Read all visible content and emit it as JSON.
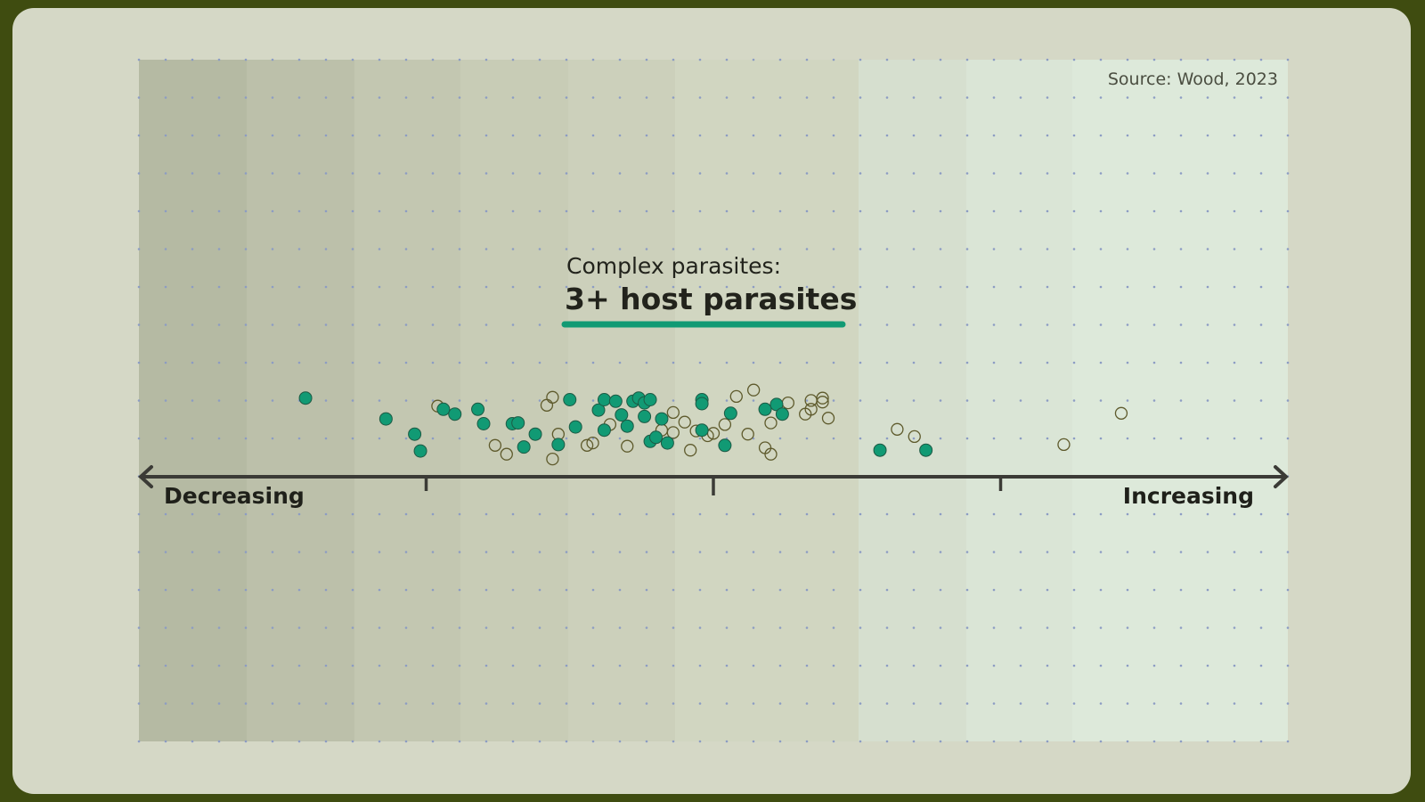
{
  "chart_data": {
    "type": "scatter",
    "title": "Complex parasites:",
    "subtitle": "3+ host parasites",
    "source": "Source: Wood, 2023",
    "xlabel_left": "Decreasing",
    "xlabel_right": "Increasing",
    "xlim": [
      -1,
      1
    ],
    "ylim": [
      0,
      1
    ],
    "x_ticks": [
      -0.5,
      0,
      0.5
    ],
    "grid": "dotted",
    "colors": {
      "filled": "#119a74",
      "open_stroke": "#5e5a2c",
      "underline": "#119a74",
      "axis": "#3b3b36"
    },
    "series": [
      {
        "style": "filled",
        "points": [
          [
            -0.71,
            0.87
          ],
          [
            -0.57,
            0.61
          ],
          [
            -0.52,
            0.42
          ],
          [
            -0.51,
            0.21
          ],
          [
            -0.47,
            0.73
          ],
          [
            -0.45,
            0.67
          ],
          [
            -0.41,
            0.73
          ],
          [
            -0.4,
            0.55
          ],
          [
            -0.35,
            0.55
          ],
          [
            -0.34,
            0.56
          ],
          [
            -0.31,
            0.42
          ],
          [
            -0.33,
            0.26
          ],
          [
            -0.27,
            0.29
          ],
          [
            -0.25,
            0.85
          ],
          [
            -0.2,
            0.72
          ],
          [
            -0.24,
            0.51
          ],
          [
            -0.19,
            0.85
          ],
          [
            -0.17,
            0.83
          ],
          [
            -0.16,
            0.66
          ],
          [
            -0.15,
            0.52
          ],
          [
            -0.19,
            0.47
          ],
          [
            -0.14,
            0.83
          ],
          [
            -0.13,
            0.87
          ],
          [
            -0.12,
            0.81
          ],
          [
            -0.11,
            0.85
          ],
          [
            -0.12,
            0.64
          ],
          [
            -0.09,
            0.61
          ],
          [
            -0.11,
            0.33
          ],
          [
            -0.1,
            0.38
          ],
          [
            -0.08,
            0.31
          ],
          [
            -0.02,
            0.85
          ],
          [
            -0.02,
            0.8
          ],
          [
            -0.02,
            0.47
          ],
          [
            0.03,
            0.68
          ],
          [
            0.02,
            0.28
          ],
          [
            0.09,
            0.73
          ],
          [
            0.11,
            0.79
          ],
          [
            0.12,
            0.67
          ],
          [
            0.29,
            0.22
          ],
          [
            0.37,
            0.22
          ]
        ]
      },
      {
        "style": "open",
        "points": [
          [
            -0.48,
            0.77
          ],
          [
            -0.28,
            0.88
          ],
          [
            -0.29,
            0.78
          ],
          [
            -0.27,
            0.42
          ],
          [
            -0.38,
            0.28
          ],
          [
            -0.36,
            0.17
          ],
          [
            -0.28,
            0.11
          ],
          [
            -0.07,
            0.69
          ],
          [
            -0.05,
            0.57
          ],
          [
            -0.18,
            0.54
          ],
          [
            -0.09,
            0.47
          ],
          [
            -0.07,
            0.44
          ],
          [
            -0.15,
            0.27
          ],
          [
            -0.22,
            0.28
          ],
          [
            -0.21,
            0.31
          ],
          [
            -0.04,
            0.22
          ],
          [
            -0.03,
            0.46
          ],
          [
            -0.01,
            0.4
          ],
          [
            0.0,
            0.43
          ],
          [
            0.02,
            0.54
          ],
          [
            0.04,
            0.89
          ],
          [
            0.07,
            0.97
          ],
          [
            0.13,
            0.81
          ],
          [
            0.16,
            0.67
          ],
          [
            0.17,
            0.73
          ],
          [
            0.17,
            0.84
          ],
          [
            0.19,
            0.87
          ],
          [
            0.19,
            0.82
          ],
          [
            0.2,
            0.62
          ],
          [
            0.1,
            0.56
          ],
          [
            0.09,
            0.25
          ],
          [
            0.1,
            0.17
          ],
          [
            0.06,
            0.42
          ],
          [
            0.32,
            0.48
          ],
          [
            0.35,
            0.39
          ],
          [
            0.61,
            0.29
          ],
          [
            0.71,
            0.68
          ]
        ]
      }
    ]
  }
}
